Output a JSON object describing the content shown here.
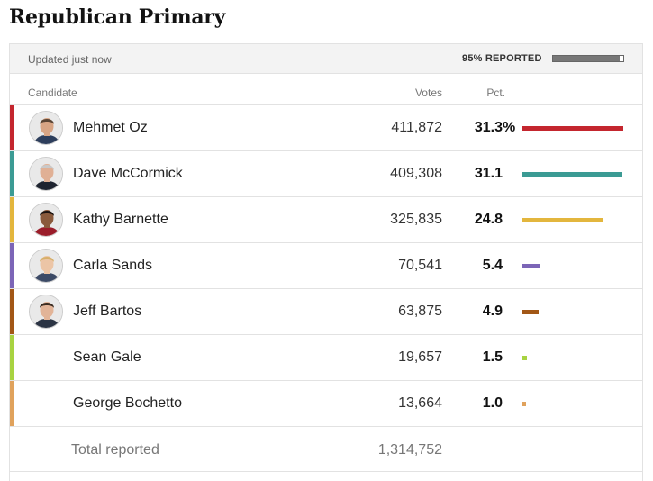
{
  "title": "Republican Primary",
  "status": {
    "updated": "Updated just now",
    "reported": "95% REPORTED",
    "reported_fraction": 0.95
  },
  "headers": {
    "candidate": "Candidate",
    "votes": "Votes",
    "pct": "Pct."
  },
  "pct_unit": "%",
  "candidates": [
    {
      "name": "Mehmet Oz",
      "votes": "411,872",
      "pct": "31.3",
      "pct_value": 31.3,
      "color": "#c4262e",
      "photo": true,
      "skin": "#d8a585",
      "hair": "#5a4535",
      "shirt": "#2d3e5c"
    },
    {
      "name": "Dave McCormick",
      "votes": "409,308",
      "pct": "31.1",
      "pct_value": 31.1,
      "color": "#3b9b94",
      "photo": true,
      "skin": "#e0b095",
      "hair": "#c9c9c9",
      "shirt": "#1f2430"
    },
    {
      "name": "Kathy Barnette",
      "votes": "325,835",
      "pct": "24.8",
      "pct_value": 24.8,
      "color": "#e3b63d",
      "photo": true,
      "skin": "#8a5a3c",
      "hair": "#1a1210",
      "shirt": "#9a1d2a"
    },
    {
      "name": "Carla Sands",
      "votes": "70,541",
      "pct": "5.4",
      "pct_value": 5.4,
      "color": "#7c65b7",
      "photo": true,
      "skin": "#ecc5a6",
      "hair": "#d7b06a",
      "shirt": "#3c4a66"
    },
    {
      "name": "Jeff Bartos",
      "votes": "63,875",
      "pct": "4.9",
      "pct_value": 4.9,
      "color": "#a25716",
      "photo": true,
      "skin": "#e2b498",
      "hair": "#3a2c22",
      "shirt": "#2b3444"
    },
    {
      "name": "Sean Gale",
      "votes": "19,657",
      "pct": "1.5",
      "pct_value": 1.5,
      "color": "#a8d341",
      "photo": false
    },
    {
      "name": "George Bochetto",
      "votes": "13,664",
      "pct": "1.0",
      "pct_value": 1.0,
      "color": "#e0a25c",
      "photo": false
    }
  ],
  "total": {
    "label": "Total reported",
    "votes": "1,314,752"
  }
}
